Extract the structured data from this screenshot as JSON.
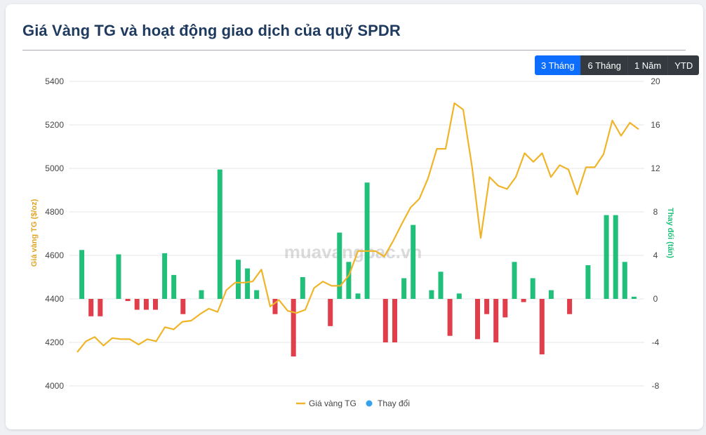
{
  "title": "Giá Vàng TG và hoạt động giao dịch của quỹ SPDR",
  "range_buttons": [
    {
      "label": "3 Tháng",
      "active": true
    },
    {
      "label": "6 Tháng",
      "active": false
    },
    {
      "label": "1 Năm",
      "active": false
    },
    {
      "label": "YTD",
      "active": false
    }
  ],
  "watermark": "muavangbac.vn",
  "colors": {
    "line": "#f0b429",
    "bar_positive": "#20c07a",
    "bar_negative": "#e03e4a",
    "legend_dot": "#36a2eb",
    "left_axis_title": "#e0a526",
    "right_axis_title": "#20c07a"
  },
  "chart_data": {
    "type": "bar+line",
    "left_axis": {
      "label": "Giá vàng TG ($/oz)",
      "min": 4000,
      "max": 5400,
      "ticks": [
        "4000",
        "4200",
        "4400",
        "4600",
        "4800",
        "5000",
        "5200",
        "5400"
      ]
    },
    "right_axis": {
      "label": "Thay đổi (tấn)",
      "min": -8,
      "max": 20,
      "ticks": [
        "-8",
        "-4",
        "0",
        "4",
        "8",
        "12",
        "16",
        "20"
      ]
    },
    "grid": true,
    "legend_position": "bottom",
    "series": [
      {
        "name": "Giá vàng TG",
        "kind": "line",
        "axis": "left",
        "values": [
          4155,
          4205,
          4225,
          4185,
          4220,
          4215,
          4215,
          4190,
          4215,
          4205,
          4270,
          4260,
          4295,
          4300,
          4330,
          4355,
          4340,
          4440,
          4475,
          4475,
          4480,
          4535,
          4365,
          4395,
          4345,
          4335,
          4350,
          4450,
          4480,
          4460,
          4460,
          4510,
          4620,
          4620,
          4620,
          4595,
          4665,
          4745,
          4820,
          4860,
          4955,
          5090,
          5090,
          5300,
          5270,
          5010,
          4680,
          4960,
          4920,
          4905,
          4960,
          5070,
          5030,
          5070,
          4960,
          5015,
          4995,
          4880,
          5005,
          5005,
          5065,
          5220,
          5150,
          5210,
          5180
        ]
      },
      {
        "name": "Thay đổi",
        "kind": "bar",
        "axis": "right",
        "values": [
          4.5,
          -1.6,
          -1.6,
          null,
          4.1,
          -0.2,
          -1.0,
          -1.0,
          -1.0,
          4.2,
          2.2,
          -1.4,
          null,
          0.8,
          null,
          11.9,
          null,
          3.6,
          2.8,
          0.8,
          null,
          -1.4,
          null,
          -5.3,
          2.0,
          null,
          null,
          -2.5,
          6.1,
          3.4,
          0.5,
          10.7,
          null,
          -4.0,
          -4.0,
          1.9,
          6.8,
          null,
          0.8,
          2.5,
          -3.4,
          0.5,
          null,
          -3.7,
          -1.4,
          -4.0,
          -1.7,
          3.4,
          -0.3,
          1.9,
          -5.1,
          0.8,
          null,
          -1.4,
          null,
          3.1,
          null,
          7.7,
          7.7,
          3.4,
          0.2
        ]
      }
    ]
  }
}
